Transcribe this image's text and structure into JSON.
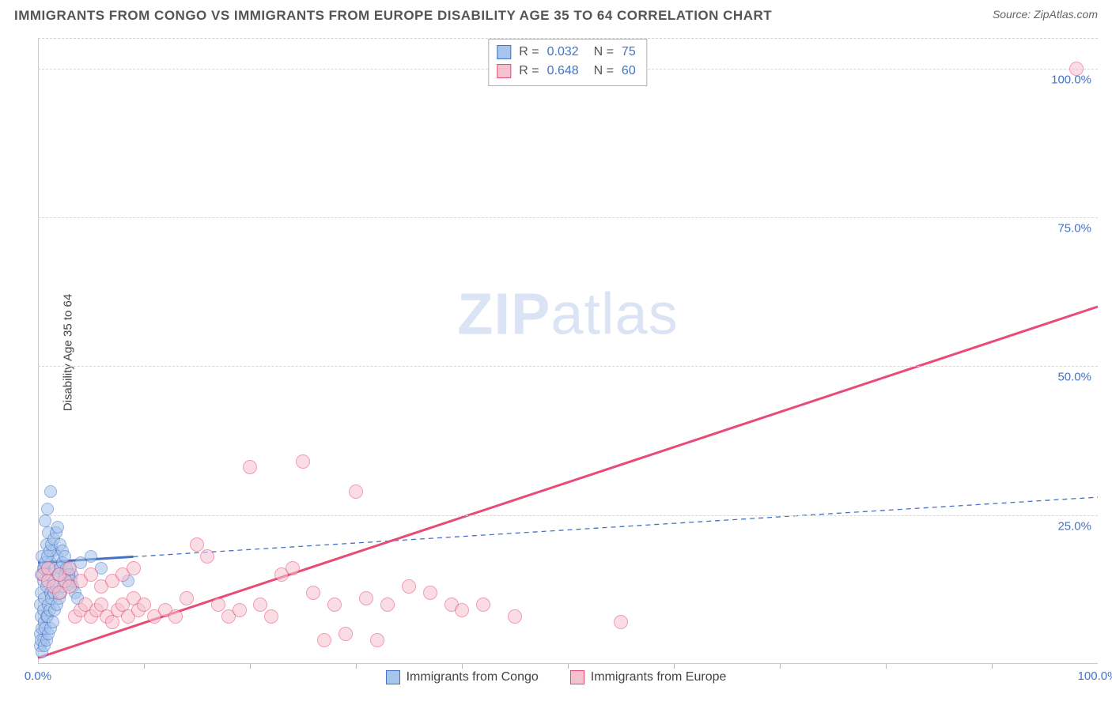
{
  "header": {
    "title": "IMMIGRANTS FROM CONGO VS IMMIGRANTS FROM EUROPE DISABILITY AGE 35 TO 64 CORRELATION CHART",
    "source": "Source: ZipAtlas.com"
  },
  "ylabel": "Disability Age 35 to 64",
  "watermark": {
    "bold": "ZIP",
    "light": "atlas"
  },
  "colors": {
    "series1_fill": "#a6c4ec",
    "series1_stroke": "#4472c4",
    "series2_fill": "#f6c1cf",
    "series2_stroke": "#e94b77",
    "tick_label": "#4472c4",
    "grid": "#d8d8d8"
  },
  "axes": {
    "xmin": 0,
    "xmax": 100,
    "ymin": 0,
    "ymax": 105,
    "yticks": [
      {
        "v": 25,
        "label": "25.0%"
      },
      {
        "v": 50,
        "label": "50.0%"
      },
      {
        "v": 75,
        "label": "75.0%"
      },
      {
        "v": 100,
        "label": "100.0%"
      }
    ],
    "xticks_minor": [
      10,
      20,
      30,
      40,
      50,
      60,
      70,
      80,
      90
    ],
    "xtick_labels": [
      {
        "v": 0,
        "label": "0.0%"
      },
      {
        "v": 100,
        "label": "100.0%"
      }
    ]
  },
  "rn_legend": [
    {
      "swatch_fill": "#a6c4ec",
      "swatch_stroke": "#4472c4",
      "r": "0.032",
      "n": "75"
    },
    {
      "swatch_fill": "#f6c1cf",
      "swatch_stroke": "#e94b77",
      "r": "0.648",
      "n": "60"
    }
  ],
  "bottom_legend": [
    {
      "swatch_fill": "#a6c4ec",
      "swatch_stroke": "#4472c4",
      "label": "Immigrants from Congo"
    },
    {
      "swatch_fill": "#f6c1cf",
      "swatch_stroke": "#e94b77",
      "label": "Immigrants from Europe"
    }
  ],
  "series": [
    {
      "name": "congo",
      "fill": "#a6c4ec",
      "stroke": "#4472c4",
      "opacity": 0.55,
      "r": 8,
      "points": [
        [
          0.2,
          10
        ],
        [
          0.3,
          12
        ],
        [
          0.5,
          14
        ],
        [
          0.6,
          16
        ],
        [
          0.4,
          18
        ],
        [
          0.8,
          20
        ],
        [
          1.0,
          22
        ],
        [
          0.7,
          24
        ],
        [
          0.9,
          26
        ],
        [
          1.2,
          29
        ],
        [
          0.3,
          8
        ],
        [
          0.5,
          9
        ],
        [
          0.6,
          11
        ],
        [
          0.8,
          13
        ],
        [
          1.0,
          15
        ],
        [
          1.2,
          17
        ],
        [
          1.4,
          19
        ],
        [
          1.5,
          14
        ],
        [
          1.6,
          16
        ],
        [
          1.8,
          18
        ],
        [
          0.2,
          5
        ],
        [
          0.4,
          6
        ],
        [
          0.6,
          7
        ],
        [
          0.8,
          8
        ],
        [
          1.0,
          10
        ],
        [
          1.2,
          12
        ],
        [
          0.5,
          4
        ],
        [
          0.7,
          6
        ],
        [
          0.9,
          8
        ],
        [
          1.1,
          9
        ],
        [
          1.3,
          11
        ],
        [
          1.5,
          12
        ],
        [
          1.7,
          13
        ],
        [
          1.9,
          15
        ],
        [
          2.1,
          16
        ],
        [
          2.3,
          17
        ],
        [
          2.5,
          15
        ],
        [
          2.8,
          14
        ],
        [
          3.0,
          16
        ],
        [
          3.2,
          15
        ],
        [
          4.0,
          17
        ],
        [
          5.0,
          18
        ],
        [
          6.0,
          16
        ],
        [
          8.5,
          14
        ],
        [
          0.2,
          3
        ],
        [
          0.3,
          4
        ],
        [
          0.4,
          2
        ],
        [
          0.6,
          3
        ],
        [
          0.8,
          4
        ],
        [
          1.0,
          5
        ],
        [
          1.2,
          6
        ],
        [
          1.4,
          7
        ],
        [
          1.6,
          9
        ],
        [
          1.8,
          10
        ],
        [
          2.0,
          11
        ],
        [
          2.2,
          12
        ],
        [
          2.4,
          13
        ],
        [
          0.3,
          15
        ],
        [
          0.5,
          16
        ],
        [
          0.7,
          17
        ],
        [
          0.9,
          18
        ],
        [
          1.1,
          19
        ],
        [
          1.3,
          20
        ],
        [
          1.5,
          21
        ],
        [
          1.7,
          22
        ],
        [
          1.9,
          23
        ],
        [
          2.1,
          20
        ],
        [
          2.3,
          19
        ],
        [
          2.5,
          18
        ],
        [
          2.7,
          16
        ],
        [
          2.9,
          15
        ],
        [
          3.1,
          14
        ],
        [
          3.3,
          13
        ],
        [
          3.5,
          12
        ],
        [
          3.7,
          11
        ]
      ],
      "trend_solid": {
        "x1": 0,
        "y1": 17,
        "x2": 9,
        "y2": 18,
        "width": 3
      },
      "trend_dashed": {
        "x1": 9,
        "y1": 18,
        "x2": 100,
        "y2": 28,
        "dash": "6,5",
        "width": 1.3
      }
    },
    {
      "name": "europe",
      "fill": "#f6c1cf",
      "stroke": "#e94b77",
      "opacity": 0.55,
      "r": 9,
      "points": [
        [
          0.5,
          15
        ],
        [
          1.0,
          14
        ],
        [
          1.5,
          13
        ],
        [
          2.0,
          12
        ],
        [
          2.5,
          14
        ],
        [
          3.0,
          13
        ],
        [
          3.5,
          8
        ],
        [
          4.0,
          9
        ],
        [
          4.5,
          10
        ],
        [
          5.0,
          8
        ],
        [
          5.5,
          9
        ],
        [
          6.0,
          10
        ],
        [
          6.5,
          8
        ],
        [
          7.0,
          7
        ],
        [
          7.5,
          9
        ],
        [
          8.0,
          10
        ],
        [
          8.5,
          8
        ],
        [
          9.0,
          11
        ],
        [
          9.5,
          9
        ],
        [
          10.0,
          10
        ],
        [
          11.0,
          8
        ],
        [
          12.0,
          9
        ],
        [
          13.0,
          8
        ],
        [
          14.0,
          11
        ],
        [
          15.0,
          20
        ],
        [
          16.0,
          18
        ],
        [
          17.0,
          10
        ],
        [
          18.0,
          8
        ],
        [
          19.0,
          9
        ],
        [
          20.0,
          33
        ],
        [
          21.0,
          10
        ],
        [
          22.0,
          8
        ],
        [
          23.0,
          15
        ],
        [
          24.0,
          16
        ],
        [
          25.0,
          34
        ],
        [
          26.0,
          12
        ],
        [
          27.0,
          4
        ],
        [
          28.0,
          10
        ],
        [
          29.0,
          5
        ],
        [
          30.0,
          29
        ],
        [
          31.0,
          11
        ],
        [
          32.0,
          4
        ],
        [
          33.0,
          10
        ],
        [
          35.0,
          13
        ],
        [
          37.0,
          12
        ],
        [
          39.0,
          10
        ],
        [
          40.0,
          9
        ],
        [
          42.0,
          10
        ],
        [
          45.0,
          8
        ],
        [
          55.0,
          7
        ],
        [
          1.0,
          16
        ],
        [
          2.0,
          15
        ],
        [
          3.0,
          16
        ],
        [
          4.0,
          14
        ],
        [
          5.0,
          15
        ],
        [
          6.0,
          13
        ],
        [
          7.0,
          14
        ],
        [
          8.0,
          15
        ],
        [
          9.0,
          16
        ],
        [
          98.0,
          100
        ]
      ],
      "trend_solid": {
        "x1": 0,
        "y1": 1,
        "x2": 100,
        "y2": 60,
        "width": 3
      }
    }
  ]
}
